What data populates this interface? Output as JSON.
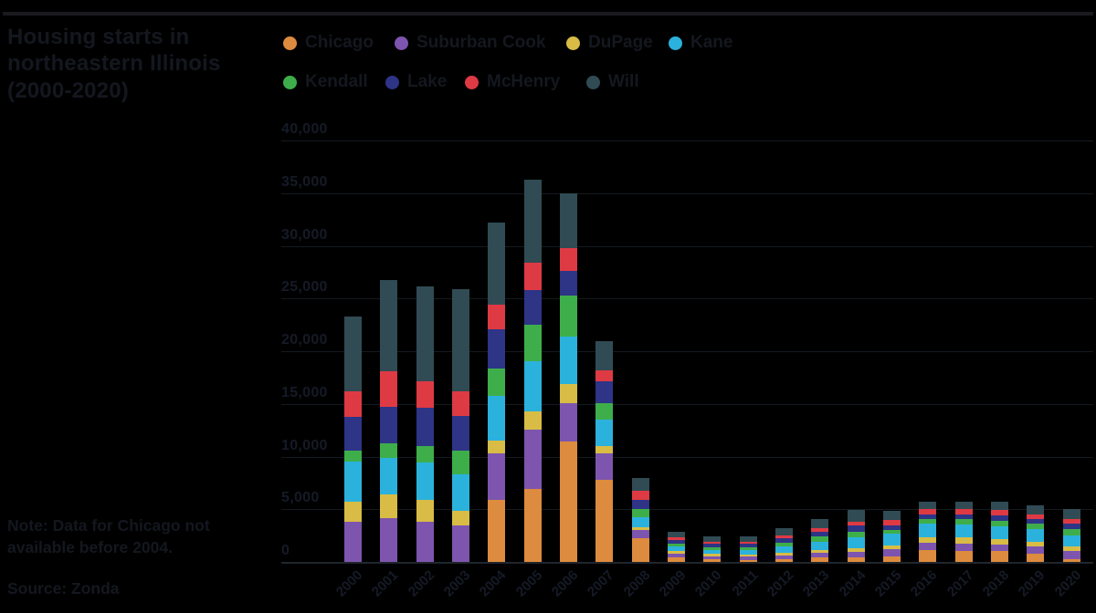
{
  "title": "Housing starts in northeastern Illinois (2000-2020)",
  "note": "Note: Data for Chicago not available before 2004.",
  "source": "Source: Zonda",
  "colors": {
    "background": "#000000",
    "ink": "#14171f",
    "gridline": "#141a20",
    "axis": "#20262c"
  },
  "legend": {
    "rows": [
      [
        "Chicago",
        "Suburban Cook",
        "DuPage",
        "Kane"
      ],
      [
        "Kendall",
        "Lake",
        "McHenry",
        "Will"
      ]
    ]
  },
  "chart_data": {
    "type": "bar",
    "stacked": true,
    "title": "Housing starts in northeastern Illinois (2000-2020)",
    "xlabel": "",
    "ylabel": "",
    "ylim": [
      0,
      40000
    ],
    "grid": true,
    "legend_position": "top",
    "categories": [
      2000,
      2001,
      2002,
      2003,
      2004,
      2005,
      2006,
      2007,
      2008,
      2009,
      2010,
      2011,
      2012,
      2013,
      2014,
      2015,
      2016,
      2017,
      2018,
      2019,
      2020
    ],
    "yticks": [
      {
        "value": 40000,
        "label": "40,000"
      },
      {
        "value": 35000,
        "label": "35,000"
      },
      {
        "value": 30000,
        "label": "30,000"
      },
      {
        "value": 25000,
        "label": "25,000"
      },
      {
        "value": 20000,
        "label": "20,000"
      },
      {
        "value": 15000,
        "label": "15,000"
      },
      {
        "value": 10000,
        "label": "10,000"
      },
      {
        "value": 5000,
        "label": "5,000"
      },
      {
        "value": 0,
        "label": "0"
      }
    ],
    "series": [
      {
        "name": "Chicago",
        "color": "#DD8B3E",
        "values": [
          null,
          null,
          null,
          null,
          5900,
          6900,
          11400,
          7800,
          2250,
          400,
          250,
          200,
          300,
          400,
          450,
          550,
          1100,
          1050,
          1000,
          800,
          300
        ]
      },
      {
        "name": "Suburban Cook",
        "color": "#7D55AE",
        "values": [
          3800,
          4200,
          3800,
          3450,
          4400,
          5650,
          3700,
          2500,
          800,
          350,
          300,
          300,
          350,
          450,
          500,
          650,
          700,
          700,
          650,
          650,
          700
        ]
      },
      {
        "name": "DuPage",
        "color": "#D8BC46",
        "values": [
          1900,
          2250,
          2100,
          1400,
          1200,
          1750,
          1800,
          700,
          250,
          250,
          200,
          200,
          250,
          300,
          350,
          400,
          550,
          550,
          550,
          500,
          450
        ]
      },
      {
        "name": "Kane",
        "color": "#2BB2DC",
        "values": [
          3800,
          3450,
          3550,
          3450,
          4250,
          4750,
          4500,
          2500,
          950,
          450,
          400,
          450,
          600,
          800,
          1000,
          1100,
          1300,
          1250,
          1200,
          1150,
          1100
        ]
      },
      {
        "name": "Kendall",
        "color": "#3EAE4B",
        "values": [
          1100,
          1400,
          1550,
          2250,
          2600,
          3450,
          3900,
          1550,
          800,
          300,
          250,
          250,
          350,
          450,
          550,
          300,
          450,
          500,
          500,
          500,
          550
        ]
      },
      {
        "name": "Lake",
        "color": "#2E3486",
        "values": [
          3200,
          3400,
          3650,
          3300,
          3700,
          3300,
          2350,
          2100,
          850,
          350,
          300,
          300,
          400,
          500,
          600,
          450,
          450,
          450,
          500,
          450,
          500
        ]
      },
      {
        "name": "McHenry",
        "color": "#DE3A44",
        "values": [
          2400,
          3400,
          2500,
          2350,
          2350,
          2600,
          2100,
          1050,
          850,
          250,
          200,
          200,
          250,
          350,
          400,
          500,
          500,
          500,
          500,
          450,
          450
        ]
      },
      {
        "name": "Will",
        "color": "#304B54",
        "values": [
          7100,
          8650,
          9000,
          9700,
          7800,
          7900,
          5200,
          2800,
          1200,
          550,
          500,
          500,
          700,
          850,
          1050,
          900,
          650,
          700,
          800,
          900,
          950
        ]
      }
    ],
    "totals_by_year": [
      23300,
      26750,
      26150,
      25900,
      32200,
      36300,
      34950,
      21000,
      7950,
      2900,
      2400,
      2400,
      3200,
      4100,
      4900,
      4850,
      5700,
      5700,
      5700,
      5400,
      5000
    ]
  }
}
